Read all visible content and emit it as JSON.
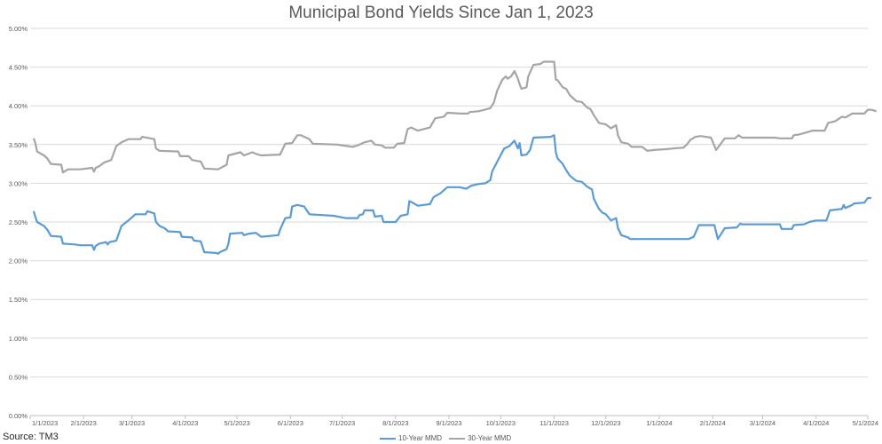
{
  "source": "Source: TM3",
  "chart_data": {
    "type": "line",
    "title": "Municipal Bond Yields Since Jan 1, 2023",
    "xlabel": "",
    "ylabel": "",
    "ylim": [
      0,
      5
    ],
    "yticks": [
      "0.00%",
      "0.50%",
      "1.00%",
      "1.50%",
      "2.00%",
      "2.50%",
      "3.00%",
      "3.50%",
      "4.00%",
      "4.50%",
      "5.00%"
    ],
    "xticks": [
      "1/1/2023",
      "2/1/2023",
      "3/1/2023",
      "4/1/2023",
      "5/1/2023",
      "6/1/2023",
      "7/1/2023",
      "8/1/2023",
      "9/1/2023",
      "10/1/2023",
      "11/1/2023",
      "12/1/2023",
      "1/1/2024",
      "2/1/2024",
      "3/1/2024",
      "4/1/2024",
      "5/1/2024"
    ],
    "grid": "horizontal",
    "legend": "bottom",
    "series": [
      {
        "name": "10-Year MMD",
        "color": "#5b9bd5",
        "points": [
          [
            "2023-01-03",
            2.64
          ],
          [
            "2023-01-04",
            2.57
          ],
          [
            "2023-01-05",
            2.5
          ],
          [
            "2023-01-09",
            2.45
          ],
          [
            "2023-01-11",
            2.4
          ],
          [
            "2023-01-13",
            2.32
          ],
          [
            "2023-01-19",
            2.31
          ],
          [
            "2023-01-20",
            2.22
          ],
          [
            "2023-01-27",
            2.21
          ],
          [
            "2023-01-30",
            2.2
          ],
          [
            "2023-02-06",
            2.2
          ],
          [
            "2023-02-07",
            2.14
          ],
          [
            "2023-02-08",
            2.19
          ],
          [
            "2023-02-10",
            2.22
          ],
          [
            "2023-02-14",
            2.24
          ],
          [
            "2023-02-15",
            2.21
          ],
          [
            "2023-02-16",
            2.24
          ],
          [
            "2023-02-20",
            2.26
          ],
          [
            "2023-02-23",
            2.45
          ],
          [
            "2023-02-27",
            2.52
          ],
          [
            "2023-03-01",
            2.56
          ],
          [
            "2023-03-03",
            2.6
          ],
          [
            "2023-03-09",
            2.6
          ],
          [
            "2023-03-10",
            2.64
          ],
          [
            "2023-03-14",
            2.61
          ],
          [
            "2023-03-15",
            2.5
          ],
          [
            "2023-03-17",
            2.45
          ],
          [
            "2023-03-20",
            2.42
          ],
          [
            "2023-03-22",
            2.38
          ],
          [
            "2023-03-29",
            2.37
          ],
          [
            "2023-03-30",
            2.31
          ],
          [
            "2023-04-05",
            2.3
          ],
          [
            "2023-04-06",
            2.26
          ],
          [
            "2023-04-10",
            2.25
          ],
          [
            "2023-04-12",
            2.11
          ],
          [
            "2023-04-19",
            2.1
          ],
          [
            "2023-04-20",
            2.09
          ],
          [
            "2023-04-21",
            2.11
          ],
          [
            "2023-04-25",
            2.15
          ],
          [
            "2023-04-26",
            2.22
          ],
          [
            "2023-04-27",
            2.35
          ],
          [
            "2023-05-04",
            2.36
          ],
          [
            "2023-05-05",
            2.33
          ],
          [
            "2023-05-08",
            2.35
          ],
          [
            "2023-05-12",
            2.36
          ],
          [
            "2023-05-15",
            2.31
          ],
          [
            "2023-05-25",
            2.33
          ],
          [
            "2023-05-26",
            2.4
          ],
          [
            "2023-05-29",
            2.55
          ],
          [
            "2023-06-01",
            2.56
          ],
          [
            "2023-06-02",
            2.7
          ],
          [
            "2023-06-05",
            2.72
          ],
          [
            "2023-06-09",
            2.7
          ],
          [
            "2023-06-12",
            2.6
          ],
          [
            "2023-06-26",
            2.58
          ],
          [
            "2023-07-03",
            2.55
          ],
          [
            "2023-07-10",
            2.55
          ],
          [
            "2023-07-11",
            2.59
          ],
          [
            "2023-07-13",
            2.6
          ],
          [
            "2023-07-14",
            2.65
          ],
          [
            "2023-07-19",
            2.65
          ],
          [
            "2023-07-20",
            2.57
          ],
          [
            "2023-07-24",
            2.58
          ],
          [
            "2023-07-25",
            2.5
          ],
          [
            "2023-08-01",
            2.5
          ],
          [
            "2023-08-04",
            2.58
          ],
          [
            "2023-08-08",
            2.6
          ],
          [
            "2023-08-09",
            2.77
          ],
          [
            "2023-08-10",
            2.76
          ],
          [
            "2023-08-14",
            2.71
          ],
          [
            "2023-08-21",
            2.73
          ],
          [
            "2023-08-23",
            2.82
          ],
          [
            "2023-08-27",
            2.87
          ],
          [
            "2023-08-31",
            2.95
          ],
          [
            "2023-09-07",
            2.95
          ],
          [
            "2023-09-11",
            2.93
          ],
          [
            "2023-09-14",
            2.97
          ],
          [
            "2023-09-18",
            2.99
          ],
          [
            "2023-09-22",
            3.0
          ],
          [
            "2023-09-25",
            3.04
          ],
          [
            "2023-09-26",
            3.15
          ],
          [
            "2023-09-29",
            3.28
          ],
          [
            "2023-10-03",
            3.45
          ],
          [
            "2023-10-06",
            3.48
          ],
          [
            "2023-10-09",
            3.55
          ],
          [
            "2023-10-11",
            3.45
          ],
          [
            "2023-10-12",
            3.52
          ],
          [
            "2023-10-13",
            3.36
          ],
          [
            "2023-10-16",
            3.37
          ],
          [
            "2023-10-18",
            3.43
          ],
          [
            "2023-10-20",
            3.59
          ],
          [
            "2023-10-30",
            3.6
          ],
          [
            "2023-11-01",
            3.62
          ],
          [
            "2023-11-02",
            3.4
          ],
          [
            "2023-11-03",
            3.32
          ],
          [
            "2023-11-06",
            3.25
          ],
          [
            "2023-11-08",
            3.17
          ],
          [
            "2023-11-10",
            3.1
          ],
          [
            "2023-11-14",
            3.03
          ],
          [
            "2023-11-17",
            3.02
          ],
          [
            "2023-11-20",
            2.96
          ],
          [
            "2023-11-23",
            2.92
          ],
          [
            "2023-11-24",
            2.8
          ],
          [
            "2023-11-27",
            2.67
          ],
          [
            "2023-11-29",
            2.62
          ],
          [
            "2023-12-01",
            2.6
          ],
          [
            "2023-12-04",
            2.52
          ],
          [
            "2023-12-07",
            2.55
          ],
          [
            "2023-12-08",
            2.42
          ],
          [
            "2023-12-10",
            2.33
          ],
          [
            "2023-12-14",
            2.3
          ],
          [
            "2023-12-15",
            2.28
          ],
          [
            "2023-12-31",
            2.28
          ],
          [
            "2024-01-18",
            2.28
          ],
          [
            "2024-01-21",
            2.31
          ],
          [
            "2024-01-24",
            2.46
          ],
          [
            "2024-02-02",
            2.46
          ],
          [
            "2024-02-04",
            2.28
          ],
          [
            "2024-02-08",
            2.42
          ],
          [
            "2024-02-15",
            2.43
          ],
          [
            "2024-02-17",
            2.48
          ],
          [
            "2024-02-18",
            2.47
          ],
          [
            "2024-03-11",
            2.47
          ],
          [
            "2024-03-12",
            2.41
          ],
          [
            "2024-03-18",
            2.41
          ],
          [
            "2024-03-19",
            2.46
          ],
          [
            "2024-03-25",
            2.47
          ],
          [
            "2024-03-28",
            2.5
          ],
          [
            "2024-04-01",
            2.52
          ],
          [
            "2024-04-07",
            2.52
          ],
          [
            "2024-04-09",
            2.65
          ],
          [
            "2024-04-16",
            2.67
          ],
          [
            "2024-04-17",
            2.72
          ],
          [
            "2024-04-18",
            2.68
          ],
          [
            "2024-04-22",
            2.72
          ],
          [
            "2024-04-23",
            2.74
          ],
          [
            "2024-04-29",
            2.75
          ],
          [
            "2024-05-01",
            2.81
          ],
          [
            "2024-05-03",
            2.81
          ]
        ]
      },
      {
        "name": "30-Year MMD",
        "color": "#a5a5a5",
        "points": [
          [
            "2023-01-03",
            3.58
          ],
          [
            "2023-01-04",
            3.52
          ],
          [
            "2023-01-05",
            3.41
          ],
          [
            "2023-01-09",
            3.36
          ],
          [
            "2023-01-11",
            3.32
          ],
          [
            "2023-01-13",
            3.25
          ],
          [
            "2023-01-19",
            3.24
          ],
          [
            "2023-01-20",
            3.14
          ],
          [
            "2023-01-23",
            3.18
          ],
          [
            "2023-01-30",
            3.18
          ],
          [
            "2023-02-06",
            3.2
          ],
          [
            "2023-02-07",
            3.15
          ],
          [
            "2023-02-08",
            3.2
          ],
          [
            "2023-02-10",
            3.22
          ],
          [
            "2023-02-13",
            3.27
          ],
          [
            "2023-02-17",
            3.3
          ],
          [
            "2023-02-20",
            3.48
          ],
          [
            "2023-02-23",
            3.53
          ],
          [
            "2023-02-27",
            3.57
          ],
          [
            "2023-03-06",
            3.57
          ],
          [
            "2023-03-07",
            3.6
          ],
          [
            "2023-03-14",
            3.57
          ],
          [
            "2023-03-15",
            3.45
          ],
          [
            "2023-03-17",
            3.42
          ],
          [
            "2023-03-28",
            3.41
          ],
          [
            "2023-03-29",
            3.35
          ],
          [
            "2023-04-03",
            3.35
          ],
          [
            "2023-04-05",
            3.3
          ],
          [
            "2023-04-10",
            3.28
          ],
          [
            "2023-04-12",
            3.19
          ],
          [
            "2023-04-20",
            3.18
          ],
          [
            "2023-04-25",
            3.24
          ],
          [
            "2023-04-26",
            3.36
          ],
          [
            "2023-05-03",
            3.4
          ],
          [
            "2023-05-05",
            3.36
          ],
          [
            "2023-05-10",
            3.4
          ],
          [
            "2023-05-12",
            3.38
          ],
          [
            "2023-05-15",
            3.36
          ],
          [
            "2023-05-26",
            3.37
          ],
          [
            "2023-05-29",
            3.51
          ],
          [
            "2023-06-02",
            3.52
          ],
          [
            "2023-06-05",
            3.62
          ],
          [
            "2023-06-07",
            3.62
          ],
          [
            "2023-06-12",
            3.57
          ],
          [
            "2023-06-14",
            3.51
          ],
          [
            "2023-06-28",
            3.5
          ],
          [
            "2023-07-04",
            3.48
          ],
          [
            "2023-07-07",
            3.47
          ],
          [
            "2023-07-10",
            3.49
          ],
          [
            "2023-07-14",
            3.53
          ],
          [
            "2023-07-18",
            3.55
          ],
          [
            "2023-07-20",
            3.5
          ],
          [
            "2023-07-24",
            3.49
          ],
          [
            "2023-07-26",
            3.46
          ],
          [
            "2023-07-31",
            3.46
          ],
          [
            "2023-08-02",
            3.51
          ],
          [
            "2023-08-06",
            3.52
          ],
          [
            "2023-08-08",
            3.7
          ],
          [
            "2023-08-10",
            3.72
          ],
          [
            "2023-08-14",
            3.68
          ],
          [
            "2023-08-21",
            3.72
          ],
          [
            "2023-08-24",
            3.84
          ],
          [
            "2023-08-29",
            3.86
          ],
          [
            "2023-08-31",
            3.91
          ],
          [
            "2023-09-08",
            3.9
          ],
          [
            "2023-09-12",
            3.9
          ],
          [
            "2023-09-13",
            3.92
          ],
          [
            "2023-09-18",
            3.93
          ],
          [
            "2023-09-20",
            3.94
          ],
          [
            "2023-09-25",
            3.97
          ],
          [
            "2023-09-27",
            4.04
          ],
          [
            "2023-09-29",
            4.2
          ],
          [
            "2023-10-02",
            4.34
          ],
          [
            "2023-10-04",
            4.38
          ],
          [
            "2023-10-05",
            4.35
          ],
          [
            "2023-10-07",
            4.38
          ],
          [
            "2023-10-09",
            4.45
          ],
          [
            "2023-10-11",
            4.35
          ],
          [
            "2023-10-12",
            4.28
          ],
          [
            "2023-10-13",
            4.22
          ],
          [
            "2023-10-16",
            4.24
          ],
          [
            "2023-10-17",
            4.38
          ],
          [
            "2023-10-20",
            4.53
          ],
          [
            "2023-10-24",
            4.54
          ],
          [
            "2023-10-26",
            4.57
          ],
          [
            "2023-11-01",
            4.57
          ],
          [
            "2023-11-02",
            4.34
          ],
          [
            "2023-11-03",
            4.33
          ],
          [
            "2023-11-06",
            4.24
          ],
          [
            "2023-11-08",
            4.22
          ],
          [
            "2023-11-10",
            4.14
          ],
          [
            "2023-11-14",
            4.06
          ],
          [
            "2023-11-17",
            4.05
          ],
          [
            "2023-11-20",
            3.98
          ],
          [
            "2023-11-22",
            3.96
          ],
          [
            "2023-11-24",
            3.88
          ],
          [
            "2023-11-27",
            3.78
          ],
          [
            "2023-11-29",
            3.77
          ],
          [
            "2023-12-01",
            3.76
          ],
          [
            "2023-12-04",
            3.71
          ],
          [
            "2023-12-07",
            3.75
          ],
          [
            "2023-12-08",
            3.62
          ],
          [
            "2023-12-10",
            3.53
          ],
          [
            "2023-12-14",
            3.51
          ],
          [
            "2023-12-16",
            3.47
          ],
          [
            "2023-12-22",
            3.47
          ],
          [
            "2023-12-25",
            3.42
          ],
          [
            "2023-12-29",
            3.43
          ],
          [
            "2024-01-05",
            3.44
          ],
          [
            "2024-01-09",
            3.45
          ],
          [
            "2024-01-15",
            3.46
          ],
          [
            "2024-01-17",
            3.5
          ],
          [
            "2024-01-19",
            3.56
          ],
          [
            "2024-01-22",
            3.6
          ],
          [
            "2024-01-25",
            3.61
          ],
          [
            "2024-01-31",
            3.59
          ],
          [
            "2024-02-03",
            3.43
          ],
          [
            "2024-02-08",
            3.58
          ],
          [
            "2024-02-14",
            3.58
          ],
          [
            "2024-02-16",
            3.62
          ],
          [
            "2024-02-18",
            3.59
          ],
          [
            "2024-03-08",
            3.59
          ],
          [
            "2024-03-11",
            3.58
          ],
          [
            "2024-03-18",
            3.58
          ],
          [
            "2024-03-19",
            3.62
          ],
          [
            "2024-03-22",
            3.63
          ],
          [
            "2024-03-27",
            3.66
          ],
          [
            "2024-03-30",
            3.68
          ],
          [
            "2024-04-06",
            3.68
          ],
          [
            "2024-04-08",
            3.78
          ],
          [
            "2024-04-12",
            3.8
          ],
          [
            "2024-04-16",
            3.86
          ],
          [
            "2024-04-18",
            3.85
          ],
          [
            "2024-04-22",
            3.9
          ],
          [
            "2024-04-29",
            3.9
          ],
          [
            "2024-05-01",
            3.95
          ],
          [
            "2024-05-03",
            3.95
          ],
          [
            "2024-05-06",
            3.93
          ]
        ]
      }
    ]
  }
}
